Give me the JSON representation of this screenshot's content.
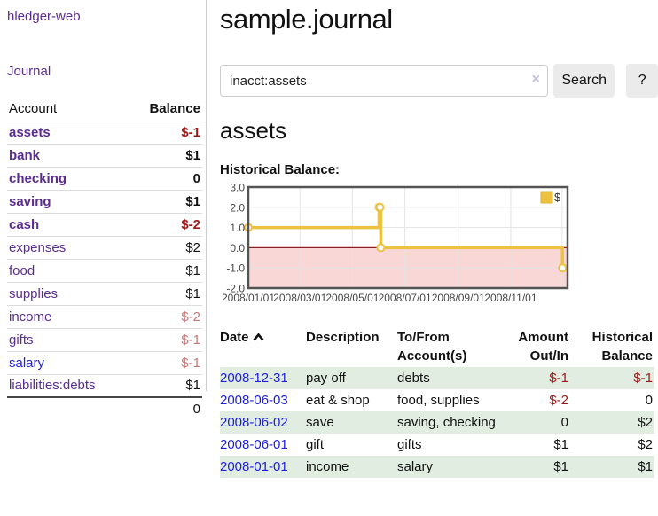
{
  "app": {
    "title": "hledger-web"
  },
  "sidebar": {
    "journal_link": "Journal",
    "accounts": {
      "header_account": "Account",
      "header_balance": "Balance",
      "rows": [
        {
          "name": "assets",
          "balance": "$-1"
        },
        {
          "name": "bank",
          "balance": "$1"
        },
        {
          "name": "checking",
          "balance": "0"
        },
        {
          "name": "saving",
          "balance": "$1"
        },
        {
          "name": "cash",
          "balance": "$-2"
        },
        {
          "name": "expenses",
          "balance": "$2"
        },
        {
          "name": "food",
          "balance": "$1"
        },
        {
          "name": "supplies",
          "balance": "$1"
        },
        {
          "name": "income",
          "balance": "$-2"
        },
        {
          "name": "gifts",
          "balance": "$-1"
        },
        {
          "name": "salary",
          "balance": "$-1"
        },
        {
          "name": "liabilities:debts",
          "balance": "$1"
        }
      ],
      "total": "0"
    }
  },
  "main": {
    "title": "sample.journal",
    "search": {
      "value": "inacct:assets",
      "clear_icon": "×",
      "button": "Search",
      "help_button": "?"
    },
    "account_heading": "assets",
    "chart_label": "Historical Balance:"
  },
  "chart_data": {
    "type": "line",
    "style": "step",
    "title": "Historical Balance",
    "series": [
      {
        "name": "$",
        "color": "#edc240",
        "points": [
          [
            "2008-01-01",
            1
          ],
          [
            "2008-06-01",
            2
          ],
          [
            "2008-06-02",
            2
          ],
          [
            "2008-06-03",
            0
          ],
          [
            "2008-12-31",
            -1
          ]
        ]
      }
    ],
    "x_ticks": [
      "2008/01/01",
      "2008/03/01",
      "2008/05/01",
      "2008/07/01",
      "2008/09/01",
      "2008/11/01"
    ],
    "y_ticks": [
      3.0,
      2.0,
      1.0,
      0.0,
      -1.0,
      -2.0
    ],
    "ylim": [
      -2,
      3
    ],
    "xlim": [
      "2008-01-01",
      "2009-01-06"
    ],
    "legend": {
      "label": "$",
      "position": "top-right"
    },
    "grid": true,
    "negative_region_fill": "#f9d7d7",
    "zero_line_color": "#8b1f1f",
    "border_color": "#545454"
  },
  "register": {
    "headers": {
      "date": "Date",
      "description": "Description",
      "accounts": "To/From Account(s)",
      "amount": "Amount Out/In",
      "balance": "Historical Balance"
    },
    "rows": [
      {
        "date": "2008-12-31",
        "description": "pay off",
        "accounts": "debts",
        "amount": "$-1",
        "balance": "$-1"
      },
      {
        "date": "2008-06-03",
        "description": "eat & shop",
        "accounts": "food, supplies",
        "amount": "$-2",
        "balance": "0"
      },
      {
        "date": "2008-06-02",
        "description": "save",
        "accounts": "saving, checking",
        "amount": "0",
        "balance": "$2"
      },
      {
        "date": "2008-06-01",
        "description": "gift",
        "accounts": "gifts",
        "amount": "$1",
        "balance": "$2"
      },
      {
        "date": "2008-01-01",
        "description": "income",
        "accounts": "salary",
        "amount": "$1",
        "balance": "$1"
      }
    ]
  }
}
